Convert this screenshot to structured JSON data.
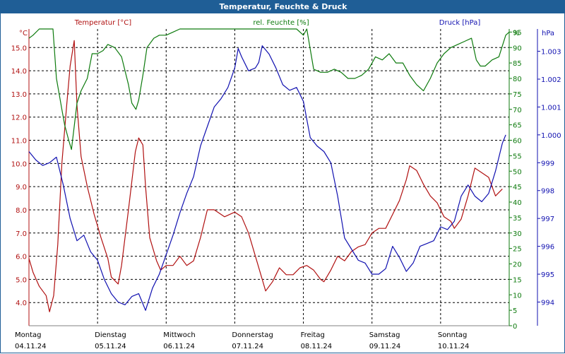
{
  "colors": {
    "title_bg": "#1f5e96",
    "title_text": "#ffffff",
    "temperature": "#b01010",
    "humidity": "#0d7a0d",
    "pressure": "#1010b0",
    "grid": "#000000"
  },
  "chart_data": {
    "type": "line",
    "title": "Temperatur, Feuchte & Druck",
    "grid": true,
    "x_labels": [
      {
        "day": "Montag",
        "date": "04.11.24",
        "x": 0
      },
      {
        "day": "Dienstag",
        "date": "05.11.24",
        "x": 1
      },
      {
        "day": "Mittwoch",
        "date": "06.11.24",
        "x": 2
      },
      {
        "day": "Donnerstag",
        "date": "07.11.24",
        "x": 3
      },
      {
        "day": "Freitag",
        "date": "08.11.24",
        "x": 4
      },
      {
        "day": "Samstag",
        "date": "09.11.24",
        "x": 5
      },
      {
        "day": "Sonntag",
        "date": "10.11.24",
        "x": 6
      }
    ],
    "xlim": [
      0,
      7
    ],
    "axes": {
      "temperature": {
        "label": "Temperatur [°C]",
        "unit": "°C",
        "ylim": [
          3.0,
          15.8
        ],
        "ticks": [
          "4.0",
          "5.0",
          "6.0",
          "7.0",
          "8.0",
          "9.0",
          "10.0",
          "11.0",
          "12.0",
          "13.0",
          "14.0",
          "15.0"
        ]
      },
      "humidity": {
        "label": "rel. Feuchte [%]",
        "unit": "%",
        "ylim": [
          0,
          96
        ],
        "ticks": [
          "0",
          "5",
          "10",
          "15",
          "20",
          "25",
          "30",
          "35",
          "40",
          "45",
          "50",
          "55",
          "60",
          "65",
          "70",
          "75",
          "80",
          "85",
          "90",
          "95"
        ]
      },
      "pressure": {
        "label": "Druck [hPa]",
        "unit": "hPa",
        "ylim": [
          993.15,
          1003.8
        ],
        "ticks": [
          {
            "label": "994",
            "value": 994
          },
          {
            "label": "995",
            "value": 995
          },
          {
            "label": "996",
            "value": 996
          },
          {
            "label": "997",
            "value": 997
          },
          {
            "label": "998",
            "value": 998
          },
          {
            "label": "999",
            "value": 999
          },
          {
            "label": "1.000",
            "value": 1000
          },
          {
            "label": "1.001",
            "value": 1001
          },
          {
            "label": "1.002",
            "value": 1002
          },
          {
            "label": "1.003",
            "value": 1003
          }
        ]
      }
    },
    "series": [
      {
        "name": "Temperatur [°C]",
        "axis": "temperature",
        "color": "#b01010",
        "points": [
          [
            0,
            5.9
          ],
          [
            0.06,
            5.3
          ],
          [
            0.15,
            4.7
          ],
          [
            0.25,
            4.3
          ],
          [
            0.3,
            3.6
          ],
          [
            0.36,
            4.3
          ],
          [
            0.42,
            6.5
          ],
          [
            0.48,
            10.0
          ],
          [
            0.55,
            12.5
          ],
          [
            0.6,
            14.2
          ],
          [
            0.66,
            15.3
          ],
          [
            0.7,
            12.5
          ],
          [
            0.76,
            10.3
          ],
          [
            0.85,
            9.0
          ],
          [
            0.95,
            7.8
          ],
          [
            1.05,
            6.8
          ],
          [
            1.15,
            5.9
          ],
          [
            1.2,
            5.1
          ],
          [
            1.3,
            4.8
          ],
          [
            1.35,
            5.6
          ],
          [
            1.45,
            8.0
          ],
          [
            1.55,
            10.5
          ],
          [
            1.6,
            11.1
          ],
          [
            1.66,
            10.8
          ],
          [
            1.7,
            9.0
          ],
          [
            1.76,
            6.8
          ],
          [
            1.86,
            5.8
          ],
          [
            1.92,
            5.4
          ],
          [
            2.0,
            5.6
          ],
          [
            2.1,
            5.6
          ],
          [
            2.2,
            6.0
          ],
          [
            2.3,
            5.6
          ],
          [
            2.4,
            5.8
          ],
          [
            2.5,
            6.8
          ],
          [
            2.6,
            8.0
          ],
          [
            2.7,
            8.0
          ],
          [
            2.85,
            7.7
          ],
          [
            3.0,
            7.9
          ],
          [
            3.1,
            7.7
          ],
          [
            3.2,
            7.0
          ],
          [
            3.3,
            6.0
          ],
          [
            3.4,
            5.0
          ],
          [
            3.45,
            4.5
          ],
          [
            3.55,
            4.9
          ],
          [
            3.65,
            5.5
          ],
          [
            3.75,
            5.2
          ],
          [
            3.85,
            5.2
          ],
          [
            3.95,
            5.5
          ],
          [
            4.05,
            5.6
          ],
          [
            4.15,
            5.4
          ],
          [
            4.25,
            5.0
          ],
          [
            4.3,
            4.9
          ],
          [
            4.4,
            5.4
          ],
          [
            4.5,
            6.0
          ],
          [
            4.6,
            5.8
          ],
          [
            4.7,
            6.2
          ],
          [
            4.8,
            6.4
          ],
          [
            4.9,
            6.5
          ],
          [
            5.0,
            7.0
          ],
          [
            5.1,
            7.2
          ],
          [
            5.2,
            7.2
          ],
          [
            5.3,
            7.8
          ],
          [
            5.4,
            8.4
          ],
          [
            5.5,
            9.3
          ],
          [
            5.55,
            9.9
          ],
          [
            5.65,
            9.7
          ],
          [
            5.75,
            9.1
          ],
          [
            5.85,
            8.6
          ],
          [
            5.95,
            8.3
          ],
          [
            6.05,
            7.7
          ],
          [
            6.15,
            7.5
          ],
          [
            6.2,
            7.2
          ],
          [
            6.3,
            7.6
          ],
          [
            6.4,
            8.6
          ],
          [
            6.5,
            9.8
          ],
          [
            6.6,
            9.6
          ],
          [
            6.7,
            9.4
          ],
          [
            6.8,
            8.6
          ],
          [
            6.9,
            8.9
          ]
        ]
      },
      {
        "name": "rel. Feuchte [%]",
        "axis": "humidity",
        "color": "#0d7a0d",
        "points": [
          [
            0,
            93
          ],
          [
            0.06,
            94
          ],
          [
            0.15,
            96
          ],
          [
            0.35,
            96
          ],
          [
            0.4,
            80
          ],
          [
            0.48,
            70
          ],
          [
            0.52,
            65
          ],
          [
            0.58,
            60
          ],
          [
            0.62,
            57
          ],
          [
            0.7,
            72
          ],
          [
            0.76,
            76
          ],
          [
            0.85,
            80
          ],
          [
            0.92,
            88
          ],
          [
            1.0,
            88
          ],
          [
            1.08,
            89
          ],
          [
            1.15,
            91
          ],
          [
            1.25,
            90
          ],
          [
            1.35,
            87
          ],
          [
            1.45,
            78
          ],
          [
            1.5,
            72
          ],
          [
            1.56,
            70
          ],
          [
            1.6,
            73
          ],
          [
            1.66,
            81
          ],
          [
            1.72,
            90
          ],
          [
            1.82,
            93
          ],
          [
            1.9,
            94
          ],
          [
            2.0,
            94
          ],
          [
            2.1,
            95
          ],
          [
            2.2,
            96
          ],
          [
            2.4,
            96
          ],
          [
            2.6,
            96
          ],
          [
            2.8,
            96
          ],
          [
            3.0,
            96
          ],
          [
            3.2,
            96
          ],
          [
            3.4,
            96
          ],
          [
            3.6,
            96
          ],
          [
            3.8,
            96
          ],
          [
            3.9,
            96
          ],
          [
            4.0,
            94
          ],
          [
            4.05,
            96
          ],
          [
            4.15,
            83
          ],
          [
            4.25,
            82
          ],
          [
            4.35,
            82
          ],
          [
            4.45,
            83
          ],
          [
            4.55,
            82
          ],
          [
            4.65,
            80
          ],
          [
            4.75,
            80
          ],
          [
            4.85,
            81
          ],
          [
            4.95,
            83
          ],
          [
            5.05,
            87
          ],
          [
            5.15,
            86
          ],
          [
            5.25,
            88
          ],
          [
            5.35,
            85
          ],
          [
            5.45,
            85
          ],
          [
            5.55,
            81
          ],
          [
            5.65,
            78
          ],
          [
            5.75,
            76
          ],
          [
            5.85,
            80
          ],
          [
            5.95,
            85
          ],
          [
            6.05,
            88
          ],
          [
            6.15,
            90
          ],
          [
            6.25,
            91
          ],
          [
            6.35,
            92
          ],
          [
            6.45,
            93
          ],
          [
            6.52,
            86
          ],
          [
            6.58,
            84
          ],
          [
            6.65,
            84
          ],
          [
            6.75,
            86
          ],
          [
            6.85,
            87
          ],
          [
            6.95,
            94
          ],
          [
            7.0,
            95
          ]
        ]
      },
      {
        "name": "Druck [hPa]",
        "axis": "pressure",
        "color": "#1010b0",
        "points": [
          [
            0,
            999.4
          ],
          [
            0.1,
            999.1
          ],
          [
            0.2,
            998.9
          ],
          [
            0.3,
            999.0
          ],
          [
            0.4,
            999.2
          ],
          [
            0.5,
            998.2
          ],
          [
            0.6,
            997.0
          ],
          [
            0.7,
            996.2
          ],
          [
            0.8,
            996.4
          ],
          [
            0.9,
            995.8
          ],
          [
            1.0,
            995.5
          ],
          [
            1.1,
            994.8
          ],
          [
            1.2,
            994.3
          ],
          [
            1.3,
            994.0
          ],
          [
            1.4,
            993.9
          ],
          [
            1.5,
            994.2
          ],
          [
            1.6,
            994.3
          ],
          [
            1.65,
            994.0
          ],
          [
            1.7,
            993.7
          ],
          [
            1.8,
            994.5
          ],
          [
            1.9,
            995.0
          ],
          [
            2.0,
            995.7
          ],
          [
            2.1,
            996.4
          ],
          [
            2.2,
            997.2
          ],
          [
            2.3,
            997.9
          ],
          [
            2.4,
            998.5
          ],
          [
            2.5,
            999.6
          ],
          [
            2.6,
            1000.3
          ],
          [
            2.7,
            1001.0
          ],
          [
            2.8,
            1001.3
          ],
          [
            2.9,
            1001.7
          ],
          [
            3.0,
            1002.4
          ],
          [
            3.05,
            1003.1
          ],
          [
            3.1,
            1002.8
          ],
          [
            3.2,
            1002.3
          ],
          [
            3.3,
            1002.4
          ],
          [
            3.35,
            1002.6
          ],
          [
            3.4,
            1003.2
          ],
          [
            3.5,
            1002.9
          ],
          [
            3.6,
            1002.4
          ],
          [
            3.7,
            1001.8
          ],
          [
            3.8,
            1001.6
          ],
          [
            3.9,
            1001.7
          ],
          [
            4.0,
            1001.2
          ],
          [
            4.1,
            999.9
          ],
          [
            4.2,
            999.6
          ],
          [
            4.3,
            999.4
          ],
          [
            4.4,
            999.0
          ],
          [
            4.5,
            997.8
          ],
          [
            4.6,
            996.3
          ],
          [
            4.7,
            995.9
          ],
          [
            4.8,
            995.5
          ],
          [
            4.9,
            995.4
          ],
          [
            5.0,
            995.0
          ],
          [
            5.1,
            995.0
          ],
          [
            5.2,
            995.2
          ],
          [
            5.3,
            996.0
          ],
          [
            5.4,
            995.6
          ],
          [
            5.5,
            995.1
          ],
          [
            5.6,
            995.4
          ],
          [
            5.7,
            996.0
          ],
          [
            5.8,
            996.1
          ],
          [
            5.9,
            996.2
          ],
          [
            6.0,
            996.7
          ],
          [
            6.1,
            996.6
          ],
          [
            6.2,
            996.9
          ],
          [
            6.3,
            997.8
          ],
          [
            6.4,
            998.2
          ],
          [
            6.5,
            997.8
          ],
          [
            6.6,
            997.6
          ],
          [
            6.7,
            997.9
          ],
          [
            6.8,
            998.7
          ],
          [
            6.9,
            999.7
          ],
          [
            6.95,
            1000.0
          ]
        ]
      }
    ]
  }
}
